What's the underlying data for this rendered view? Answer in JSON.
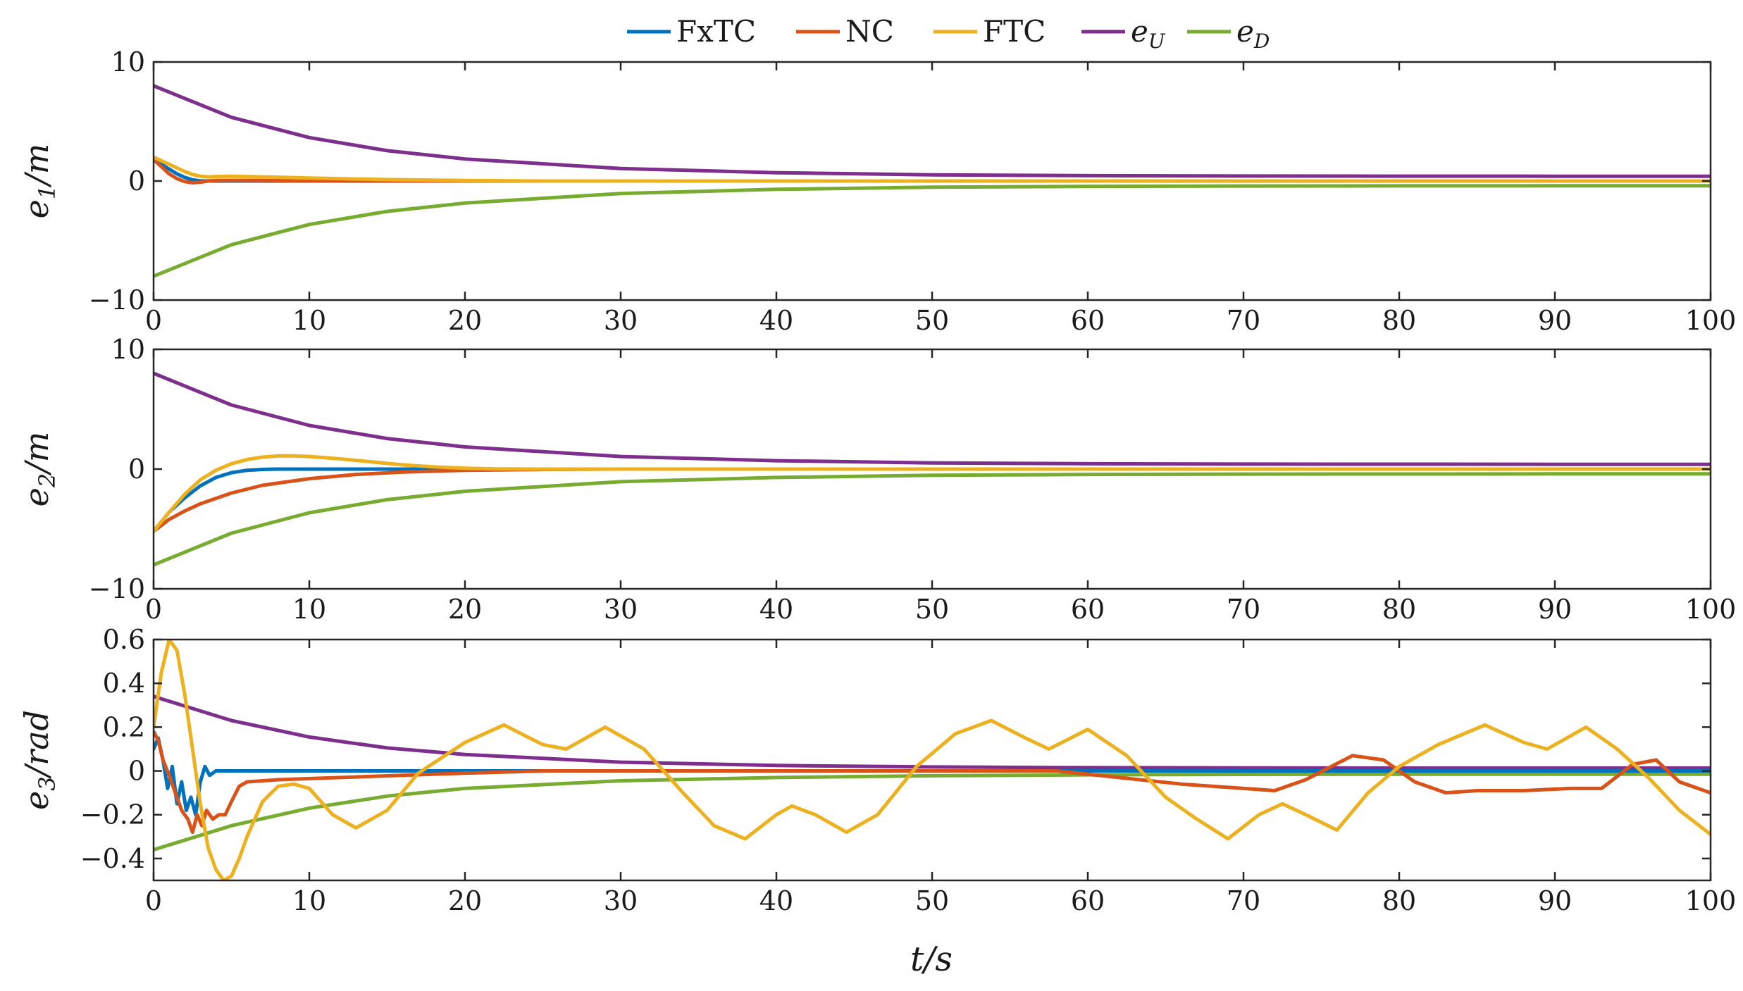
{
  "chart_data": {
    "type": "line",
    "legend": {
      "placement": "top-center",
      "entries": [
        {
          "key": "FxTC",
          "label": "FxTC",
          "color": "#0072BD"
        },
        {
          "key": "NC",
          "label": "NC",
          "color": "#D95319"
        },
        {
          "key": "FTC",
          "label": "FTC",
          "color": "#EDB120"
        },
        {
          "key": "eU",
          "label": "e",
          "sub": "U",
          "color": "#7E2F8E"
        },
        {
          "key": "eD",
          "label": "e",
          "sub": "D",
          "color": "#77AC30"
        }
      ]
    },
    "xlabel": {
      "main": "t/s"
    },
    "xlim": [
      0,
      100
    ],
    "xticks": [
      0,
      10,
      20,
      30,
      40,
      50,
      60,
      70,
      80,
      90,
      100
    ],
    "subplots": [
      {
        "ylabel": {
          "main": "e",
          "sub": "1",
          "rest": "/m"
        },
        "ylim": [
          -10,
          10
        ],
        "yticks": [
          {
            "v": 10,
            "label": "10"
          },
          {
            "v": 0,
            "label": "0"
          },
          {
            "v": -10,
            "label": "−10"
          }
        ],
        "series": [
          {
            "key": "eU",
            "x": [
              0,
              5,
              10,
              15,
              20,
              30,
              40,
              50,
              60,
              70,
              80,
              90,
              100
            ],
            "y": [
              8.0,
              5.35,
              3.65,
              2.55,
              1.85,
              1.05,
              0.7,
              0.52,
              0.45,
              0.42,
              0.41,
              0.4,
              0.4
            ]
          },
          {
            "key": "eD",
            "x": [
              0,
              5,
              10,
              15,
              20,
              30,
              40,
              50,
              60,
              70,
              80,
              90,
              100
            ],
            "y": [
              -8.0,
              -5.35,
              -3.65,
              -2.55,
              -1.85,
              -1.05,
              -0.7,
              -0.52,
              -0.45,
              -0.42,
              -0.41,
              -0.4,
              -0.4
            ]
          },
          {
            "key": "FxTC",
            "x": [
              0,
              0.5,
              1,
              1.5,
              2,
              2.5,
              3,
              4,
              6,
              100
            ],
            "y": [
              1.8,
              1.4,
              1.0,
              0.6,
              0.3,
              0.1,
              0.02,
              0.0,
              0.0,
              0.0
            ]
          },
          {
            "key": "NC",
            "x": [
              0,
              0.5,
              1,
              1.5,
              2,
              2.5,
              3,
              3.5,
              4,
              5,
              7,
              10,
              15,
              20,
              100
            ],
            "y": [
              1.8,
              1.2,
              0.6,
              0.2,
              -0.05,
              -0.15,
              -0.1,
              0.0,
              0.05,
              0.06,
              0.04,
              0.02,
              0.01,
              0.0,
              0.0
            ]
          },
          {
            "key": "FTC",
            "x": [
              0,
              0.5,
              1,
              1.5,
              2,
              2.5,
              3,
              3.5,
              4,
              5,
              7,
              10,
              15,
              20,
              25,
              100
            ],
            "y": [
              2.0,
              1.7,
              1.4,
              1.1,
              0.8,
              0.55,
              0.4,
              0.35,
              0.38,
              0.4,
              0.35,
              0.25,
              0.12,
              0.05,
              0.0,
              0.0
            ]
          }
        ]
      },
      {
        "ylabel": {
          "main": "e",
          "sub": "2",
          "rest": "/m"
        },
        "ylim": [
          -10,
          10
        ],
        "yticks": [
          {
            "v": 10,
            "label": "10"
          },
          {
            "v": 0,
            "label": "0"
          },
          {
            "v": -10,
            "label": "−10"
          }
        ],
        "series": [
          {
            "key": "eU",
            "x": [
              0,
              5,
              10,
              15,
              20,
              30,
              40,
              50,
              60,
              70,
              80,
              90,
              100
            ],
            "y": [
              8.0,
              5.35,
              3.65,
              2.55,
              1.85,
              1.05,
              0.7,
              0.52,
              0.45,
              0.42,
              0.41,
              0.4,
              0.4
            ]
          },
          {
            "key": "eD",
            "x": [
              0,
              5,
              10,
              15,
              20,
              30,
              40,
              50,
              60,
              70,
              80,
              90,
              100
            ],
            "y": [
              -8.0,
              -5.35,
              -3.65,
              -2.55,
              -1.85,
              -1.05,
              -0.7,
              -0.52,
              -0.45,
              -0.42,
              -0.41,
              -0.4,
              -0.4
            ]
          },
          {
            "key": "FxTC",
            "x": [
              0,
              1,
              2,
              3,
              4,
              5,
              6,
              7,
              8,
              10,
              100
            ],
            "y": [
              -5.2,
              -3.6,
              -2.4,
              -1.4,
              -0.7,
              -0.3,
              -0.1,
              -0.03,
              0.0,
              0.0,
              0.0
            ]
          },
          {
            "key": "NC",
            "x": [
              0,
              1,
              2,
              3,
              5,
              7,
              10,
              13,
              16,
              20,
              25,
              30,
              100
            ],
            "y": [
              -5.2,
              -4.2,
              -3.5,
              -2.9,
              -2.0,
              -1.35,
              -0.8,
              -0.45,
              -0.25,
              -0.1,
              -0.03,
              0.0,
              0.0
            ]
          },
          {
            "key": "FTC",
            "x": [
              0,
              1,
              2,
              3,
              4,
              5,
              6,
              7,
              8,
              9,
              10,
              12,
              14,
              16,
              18,
              20,
              22,
              25,
              100
            ],
            "y": [
              -5.2,
              -3.6,
              -2.1,
              -0.9,
              -0.1,
              0.45,
              0.8,
              1.0,
              1.1,
              1.1,
              1.05,
              0.85,
              0.6,
              0.35,
              0.18,
              0.07,
              0.02,
              0.0,
              0.0
            ]
          }
        ]
      },
      {
        "ylabel": {
          "main": "e",
          "sub": "3",
          "rest": "/rad"
        },
        "ylim": [
          -0.5,
          0.6
        ],
        "yticks": [
          {
            "v": 0.6,
            "label": "0.6"
          },
          {
            "v": 0.4,
            "label": "0.4"
          },
          {
            "v": 0.2,
            "label": "0.2"
          },
          {
            "v": 0,
            "label": "0"
          },
          {
            "v": -0.2,
            "label": "−0.2"
          },
          {
            "v": -0.4,
            "label": "−0.4"
          }
        ],
        "series": [
          {
            "key": "eU",
            "x": [
              0,
              5,
              10,
              15,
              20,
              30,
              40,
              50,
              60,
              70,
              80,
              90,
              100
            ],
            "y": [
              0.34,
              0.23,
              0.155,
              0.105,
              0.075,
              0.04,
              0.025,
              0.018,
              0.015,
              0.014,
              0.013,
              0.013,
              0.013
            ]
          },
          {
            "key": "eD",
            "x": [
              0,
              5,
              10,
              15,
              20,
              30,
              40,
              50,
              60,
              70,
              80,
              90,
              100
            ],
            "y": [
              -0.36,
              -0.25,
              -0.17,
              -0.115,
              -0.08,
              -0.045,
              -0.03,
              -0.022,
              -0.018,
              -0.016,
              -0.015,
              -0.015,
              -0.015
            ]
          },
          {
            "key": "FxTC",
            "x": [
              0,
              0.3,
              0.6,
              0.9,
              1.2,
              1.5,
              1.8,
              2.1,
              2.4,
              2.7,
              3.0,
              3.3,
              3.6,
              4.0,
              5,
              100
            ],
            "y": [
              0.1,
              0.15,
              0.05,
              -0.08,
              0.02,
              -0.15,
              -0.05,
              -0.18,
              -0.12,
              -0.2,
              -0.05,
              0.02,
              -0.02,
              0.0,
              0.0,
              0.0
            ]
          },
          {
            "key": "NC",
            "x": [
              0,
              0.3,
              0.6,
              1.0,
              1.4,
              1.8,
              2.2,
              2.5,
              2.8,
              3.1,
              3.4,
              3.8,
              4.2,
              4.6,
              5.0,
              5.5,
              6,
              8,
              12,
              16,
              20,
              25,
              30,
              40,
              50,
              58,
              62,
              66,
              70,
              72,
              74,
              77,
              79,
              81,
              83,
              85,
              88,
              91,
              93,
              95,
              96.5,
              98,
              100
            ],
            "y": [
              0.18,
              0.14,
              0.05,
              -0.02,
              -0.1,
              -0.18,
              -0.22,
              -0.28,
              -0.2,
              -0.25,
              -0.18,
              -0.22,
              -0.2,
              -0.2,
              -0.14,
              -0.07,
              -0.05,
              -0.04,
              -0.03,
              -0.02,
              -0.01,
              0.0,
              0.0,
              0.0,
              0.0,
              0.0,
              -0.03,
              -0.06,
              -0.08,
              -0.09,
              -0.04,
              0.07,
              0.05,
              -0.05,
              -0.1,
              -0.09,
              -0.09,
              -0.08,
              -0.08,
              0.03,
              0.05,
              -0.05,
              -0.1
            ]
          },
          {
            "key": "FTC",
            "x": [
              0,
              0.5,
              1.0,
              1.5,
              2.0,
              2.5,
              3.0,
              3.5,
              4.0,
              4.5,
              5.0,
              5.5,
              6.0,
              7.0,
              8.0,
              9.0,
              10.0,
              11.5,
              13.0,
              15.0,
              17.0,
              20.0,
              22.5,
              25.0,
              26.5,
              29.0,
              31.5,
              34.0,
              36.0,
              38.0,
              40.0,
              41.0,
              42.5,
              44.5,
              46.5,
              49.0,
              51.5,
              53.8,
              56.0,
              57.5,
              60.0,
              62.5,
              65.0,
              67.0,
              69.0,
              71.0,
              72.5,
              74.0,
              76.0,
              78.0,
              80.0,
              82.5,
              85.5,
              88.0,
              89.5,
              92.0,
              94.0,
              96.0,
              98.0,
              100.0
            ],
            "y": [
              0.2,
              0.45,
              0.6,
              0.55,
              0.35,
              0.1,
              -0.15,
              -0.35,
              -0.45,
              -0.5,
              -0.48,
              -0.4,
              -0.3,
              -0.14,
              -0.07,
              -0.06,
              -0.08,
              -0.2,
              -0.26,
              -0.18,
              -0.01,
              0.13,
              0.21,
              0.12,
              0.1,
              0.2,
              0.1,
              -0.1,
              -0.25,
              -0.31,
              -0.2,
              -0.16,
              -0.2,
              -0.28,
              -0.2,
              0.02,
              0.17,
              0.23,
              0.15,
              0.1,
              0.19,
              0.07,
              -0.12,
              -0.22,
              -0.31,
              -0.2,
              -0.15,
              -0.2,
              -0.27,
              -0.1,
              0.02,
              0.12,
              0.21,
              0.13,
              0.1,
              0.2,
              0.1,
              -0.03,
              -0.18,
              -0.29
            ]
          }
        ]
      }
    ]
  }
}
